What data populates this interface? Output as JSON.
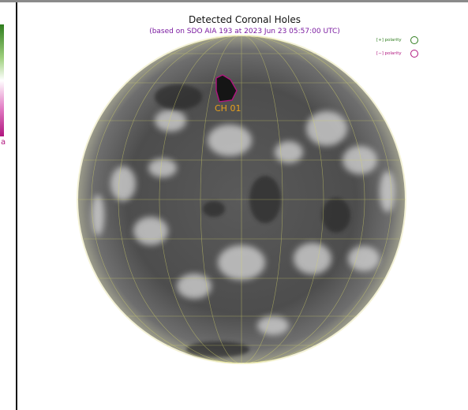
{
  "header": {
    "title": "Detected Coronal Holes",
    "subtitle": "(based on SDO AIA 193 at 2023 Jun 23 05:57:00 UTC)"
  },
  "legend": {
    "positive": {
      "label": "[+] polarity",
      "color": "#2f7d1e",
      "icon": "circle-outline-icon"
    },
    "negative": {
      "label": "[−] polarity",
      "color": "#b0157e",
      "icon": "circle-outline-icon"
    }
  },
  "colorbar": {
    "label_fragment": "a",
    "colors": [
      "#2f7d1e",
      "#ffffff",
      "#b0157e"
    ]
  },
  "image": {
    "coronal_holes": [
      {
        "label": "CH 01",
        "polarity": "negative",
        "outline_color": "#b0157e",
        "label_color": "#e8a01c"
      }
    ],
    "grid_color": "#d8d86a"
  }
}
